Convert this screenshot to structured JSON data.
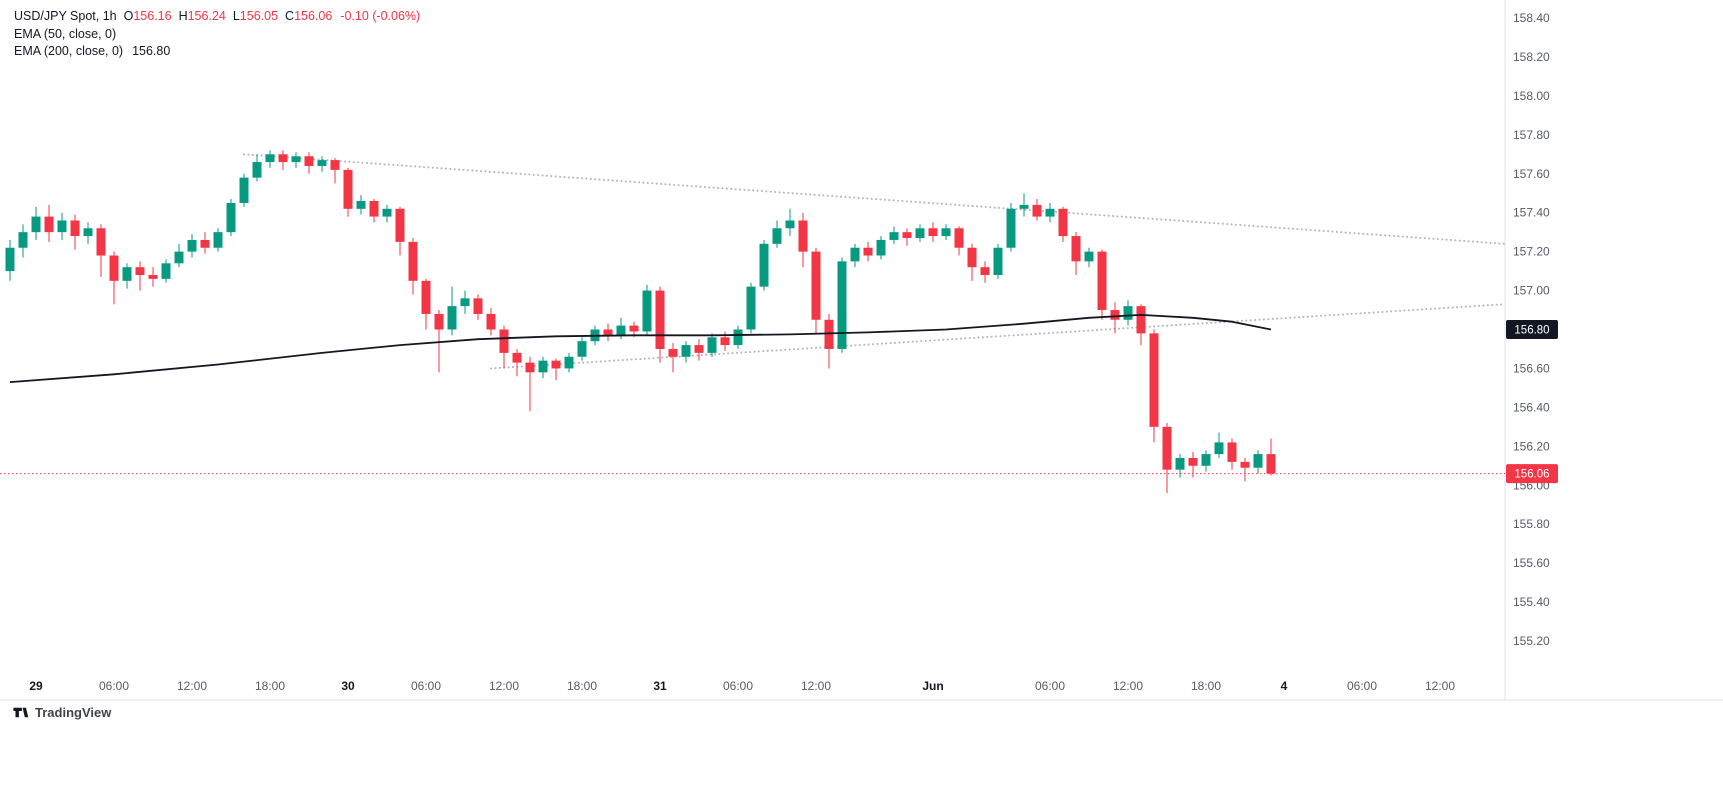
{
  "legend": {
    "title": "USD/JPY Spot, 1h",
    "ohlc": [
      {
        "label": "O",
        "value": "156.16"
      },
      {
        "label": "H",
        "value": "156.24"
      },
      {
        "label": "L",
        "value": "156.05"
      },
      {
        "label": "C",
        "value": "156.06"
      }
    ],
    "change": "-0.10 (-0.06%)",
    "indicators": [
      {
        "label": "EMA (50, close, 0)",
        "value": ""
      },
      {
        "label": "EMA (200, close, 0)",
        "value": "156.80"
      }
    ]
  },
  "footer": {
    "brand": "TradingView"
  },
  "badges": {
    "ema200": "156.80",
    "last_price": "156.06"
  },
  "colors": {
    "up": "#089981",
    "down": "#F23645",
    "ema200_line": "#131722",
    "trendline": "#b2b5be",
    "last_price_line": "#F23645",
    "axis_text_major": "#131722",
    "axis_text_minor": "#555b66",
    "axis_border": "#e0e3eb",
    "badge_ema_bg": "#131722",
    "badge_last_bg": "#F23645",
    "badge_text": "#ffffff"
  },
  "chart_data": {
    "type": "candlestick",
    "title": "USD/JPY Spot",
    "interval": "1h",
    "last_price": 156.06,
    "ema200_last": 156.8,
    "y_axis": {
      "ticks": [
        158.4,
        158.2,
        158.0,
        157.8,
        157.6,
        157.4,
        157.2,
        157.0,
        156.8,
        156.6,
        156.4,
        156.2,
        156.0,
        155.8,
        155.6,
        155.4,
        155.2
      ],
      "format_decimals": 2
    },
    "x_axis": {
      "labels": [
        {
          "i": 2,
          "text": "29",
          "major": true
        },
        {
          "i": 8,
          "text": "06:00",
          "major": false
        },
        {
          "i": 14,
          "text": "12:00",
          "major": false
        },
        {
          "i": 20,
          "text": "18:00",
          "major": false
        },
        {
          "i": 26,
          "text": "30",
          "major": true
        },
        {
          "i": 32,
          "text": "06:00",
          "major": false
        },
        {
          "i": 38,
          "text": "12:00",
          "major": false
        },
        {
          "i": 44,
          "text": "18:00",
          "major": false
        },
        {
          "i": 50,
          "text": "31",
          "major": true
        },
        {
          "i": 56,
          "text": "06:00",
          "major": false
        },
        {
          "i": 62,
          "text": "12:00",
          "major": false
        },
        {
          "i": 71,
          "text": "Jun",
          "major": true
        },
        {
          "i": 80,
          "text": "06:00",
          "major": false
        },
        {
          "i": 86,
          "text": "12:00",
          "major": false
        },
        {
          "i": 92,
          "text": "18:00",
          "major": false
        },
        {
          "i": 98,
          "text": "4",
          "major": true
        },
        {
          "i": 104,
          "text": "06:00",
          "major": false
        },
        {
          "i": 110,
          "text": "12:00",
          "major": false
        }
      ]
    },
    "candles": [
      [
        157.1,
        157.26,
        157.05,
        157.22
      ],
      [
        157.22,
        157.34,
        157.17,
        157.3
      ],
      [
        157.3,
        157.43,
        157.26,
        157.38
      ],
      [
        157.38,
        157.44,
        157.25,
        157.3
      ],
      [
        157.3,
        157.4,
        157.26,
        157.36
      ],
      [
        157.36,
        157.39,
        157.21,
        157.28
      ],
      [
        157.28,
        157.35,
        157.24,
        157.32
      ],
      [
        157.32,
        157.34,
        157.07,
        157.18
      ],
      [
        157.18,
        157.2,
        156.93,
        157.05
      ],
      [
        157.05,
        157.14,
        157.01,
        157.12
      ],
      [
        157.12,
        157.15,
        157.0,
        157.08
      ],
      [
        157.08,
        157.12,
        157.02,
        157.06
      ],
      [
        157.06,
        157.16,
        157.04,
        157.14
      ],
      [
        157.14,
        157.24,
        157.12,
        157.2
      ],
      [
        157.2,
        157.29,
        157.17,
        157.26
      ],
      [
        157.26,
        157.3,
        157.19,
        157.22
      ],
      [
        157.22,
        157.32,
        157.2,
        157.3
      ],
      [
        157.3,
        157.47,
        157.28,
        157.45
      ],
      [
        157.45,
        157.6,
        157.43,
        157.58
      ],
      [
        157.58,
        157.7,
        157.56,
        157.66
      ],
      [
        157.66,
        157.72,
        157.63,
        157.7
      ],
      [
        157.7,
        157.72,
        157.62,
        157.66
      ],
      [
        157.66,
        157.71,
        157.63,
        157.69
      ],
      [
        157.69,
        157.71,
        157.6,
        157.64
      ],
      [
        157.64,
        157.69,
        157.61,
        157.67
      ],
      [
        157.67,
        157.68,
        157.55,
        157.62
      ],
      [
        157.62,
        157.63,
        157.38,
        157.42
      ],
      [
        157.42,
        157.49,
        157.39,
        157.46
      ],
      [
        157.46,
        157.47,
        157.35,
        157.38
      ],
      [
        157.38,
        157.44,
        157.35,
        157.42
      ],
      [
        157.42,
        157.43,
        157.18,
        157.25
      ],
      [
        157.25,
        157.27,
        156.98,
        157.05
      ],
      [
        157.05,
        157.06,
        156.8,
        156.88
      ],
      [
        156.88,
        156.9,
        156.58,
        156.8
      ],
      [
        156.8,
        157.02,
        156.77,
        156.92
      ],
      [
        156.92,
        157.0,
        156.88,
        156.96
      ],
      [
        156.96,
        156.98,
        156.85,
        156.88
      ],
      [
        156.88,
        156.91,
        156.77,
        156.8
      ],
      [
        156.8,
        156.82,
        156.6,
        156.68
      ],
      [
        156.68,
        156.7,
        156.56,
        156.63
      ],
      [
        156.63,
        156.66,
        156.38,
        156.58
      ],
      [
        156.58,
        156.66,
        156.55,
        156.64
      ],
      [
        156.64,
        156.65,
        156.54,
        156.6
      ],
      [
        156.6,
        156.68,
        156.58,
        156.66
      ],
      [
        156.66,
        156.76,
        156.64,
        156.74
      ],
      [
        156.74,
        156.82,
        156.72,
        156.8
      ],
      [
        156.8,
        156.83,
        156.74,
        156.77
      ],
      [
        156.77,
        156.86,
        156.75,
        156.82
      ],
      [
        156.82,
        156.84,
        156.76,
        156.79
      ],
      [
        156.79,
        157.03,
        156.77,
        157.0
      ],
      [
        157.0,
        157.02,
        156.63,
        156.7
      ],
      [
        156.7,
        156.73,
        156.58,
        156.66
      ],
      [
        156.66,
        156.74,
        156.63,
        156.72
      ],
      [
        156.72,
        156.75,
        156.64,
        156.68
      ],
      [
        156.68,
        156.78,
        156.66,
        156.76
      ],
      [
        156.76,
        156.79,
        156.69,
        156.72
      ],
      [
        156.72,
        156.82,
        156.7,
        156.8
      ],
      [
        156.8,
        157.04,
        156.78,
        157.02
      ],
      [
        157.02,
        157.26,
        157.0,
        157.24
      ],
      [
        157.24,
        157.36,
        157.22,
        157.32
      ],
      [
        157.32,
        157.42,
        157.28,
        157.36
      ],
      [
        157.36,
        157.4,
        157.12,
        157.2
      ],
      [
        157.2,
        157.22,
        156.78,
        156.85
      ],
      [
        156.85,
        156.88,
        156.6,
        156.7
      ],
      [
        156.7,
        157.17,
        156.68,
        157.15
      ],
      [
        157.15,
        157.24,
        157.12,
        157.22
      ],
      [
        157.22,
        157.25,
        157.15,
        157.18
      ],
      [
        157.18,
        157.28,
        157.16,
        157.26
      ],
      [
        157.26,
        157.33,
        157.24,
        157.3
      ],
      [
        157.3,
        157.32,
        157.23,
        157.27
      ],
      [
        157.27,
        157.34,
        157.25,
        157.32
      ],
      [
        157.32,
        157.35,
        157.25,
        157.28
      ],
      [
        157.28,
        157.34,
        157.26,
        157.32
      ],
      [
        157.32,
        157.33,
        157.18,
        157.22
      ],
      [
        157.22,
        157.24,
        157.05,
        157.12
      ],
      [
        157.12,
        157.15,
        157.04,
        157.08
      ],
      [
        157.08,
        157.24,
        157.06,
        157.22
      ],
      [
        157.22,
        157.45,
        157.2,
        157.42
      ],
      [
        157.42,
        157.5,
        157.38,
        157.44
      ],
      [
        157.44,
        157.47,
        157.36,
        157.38
      ],
      [
        157.38,
        157.45,
        157.35,
        157.42
      ],
      [
        157.42,
        157.43,
        157.25,
        157.28
      ],
      [
        157.28,
        157.3,
        157.08,
        157.15
      ],
      [
        157.15,
        157.22,
        157.12,
        157.2
      ],
      [
        157.2,
        157.21,
        156.85,
        156.9
      ],
      [
        156.9,
        156.94,
        156.78,
        156.85
      ],
      [
        156.85,
        156.95,
        156.82,
        156.92
      ],
      [
        156.92,
        156.93,
        156.72,
        156.78
      ],
      [
        156.78,
        156.8,
        156.22,
        156.3
      ],
      [
        156.3,
        156.32,
        155.96,
        156.08
      ],
      [
        156.08,
        156.16,
        156.04,
        156.14
      ],
      [
        156.14,
        156.17,
        156.04,
        156.1
      ],
      [
        156.1,
        156.18,
        156.07,
        156.16
      ],
      [
        156.16,
        156.27,
        156.14,
        156.22
      ],
      [
        156.22,
        156.24,
        156.08,
        156.12
      ],
      [
        156.12,
        156.14,
        156.02,
        156.09
      ],
      [
        156.09,
        156.18,
        156.06,
        156.16
      ],
      [
        156.16,
        156.24,
        156.05,
        156.06
      ]
    ],
    "ema200_points": [
      [
        0,
        156.53
      ],
      [
        8,
        156.57
      ],
      [
        16,
        156.62
      ],
      [
        24,
        156.68
      ],
      [
        30,
        156.72
      ],
      [
        36,
        156.75
      ],
      [
        42,
        156.765
      ],
      [
        48,
        156.77
      ],
      [
        54,
        156.77
      ],
      [
        60,
        156.775
      ],
      [
        66,
        156.785
      ],
      [
        72,
        156.8
      ],
      [
        78,
        156.83
      ],
      [
        83,
        156.86
      ],
      [
        87,
        156.875
      ],
      [
        91,
        156.86
      ],
      [
        94,
        156.84
      ],
      [
        97,
        156.8
      ]
    ],
    "trendlines": [
      {
        "from_i": 18,
        "from_price": 157.7,
        "to_i": 115,
        "to_price": 157.24
      },
      {
        "from_i": 37,
        "from_price": 156.6,
        "to_i": 115,
        "to_price": 156.93
      }
    ]
  }
}
